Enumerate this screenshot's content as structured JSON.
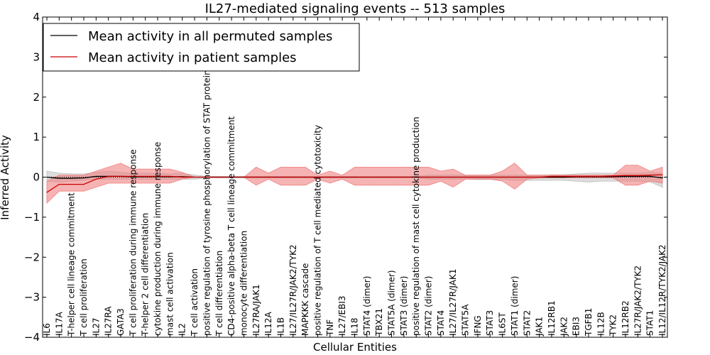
{
  "chart_data": {
    "type": "line",
    "title": "IL27-mediated signaling events -- 513 samples",
    "xlabel": "Cellular Entities",
    "ylabel": "Inferred Activity",
    "ylim": [
      -4,
      4
    ],
    "yticks": [
      -4,
      -3,
      -2,
      -1,
      0,
      1,
      2,
      3,
      4
    ],
    "ytick_labels": [
      "−4",
      "−3",
      "−2",
      "−1",
      "0",
      "1",
      "2",
      "3",
      "4"
    ],
    "legend_position": "top-left",
    "categories": [
      "IL6",
      "IL17A",
      "T-helper cell lineage commitment",
      "T cell proliferation",
      "IL27",
      "IL27RA",
      "GATA3",
      "T cell proliferation during immune response",
      "T-helper 2 cell differentiation",
      "cytokine production during immune response",
      "mast cell activation",
      "IL2",
      "T cell activation",
      "positive regulation of tyrosine phosphorylation of STAT protein",
      "T cell differentiation",
      "CD4-positive alpha-beta T cell lineage commitment",
      "monocyte differentiation",
      "IL27RA/JAK1",
      "IL12A",
      "IL1B",
      "IL27/IL27R/JAK2/TYK2",
      "MAPKKK cascade",
      "positive regulation of T cell mediated cytotoxicity",
      "TNF",
      "IL27/EBI3",
      "IL18",
      "STAT4 (dimer)",
      "TBX21",
      "STAT5A (dimer)",
      "STAT3 (dimer)",
      "positive regulation of mast cell cytokine production",
      "STAT2 (dimer)",
      "STAT4",
      "IL27/IL27R/JAK1",
      "STAT5A",
      "IFNG",
      "STAT3",
      "IL6ST",
      "STAT1 (dimer)",
      "STAT2",
      "JAK1",
      "IL12RB1",
      "JAK2",
      "EBI3",
      "TGFB1",
      "IL12B",
      "TYK2",
      "IL12RB2",
      "IL27R/JAK2/TYK2",
      "STAT1",
      "IL12/IL12R/TYK2/JAK2"
    ],
    "series": [
      {
        "name": "Mean activity in all permuted samples",
        "color": "#000000",
        "values": [
          0.0,
          -0.03,
          -0.03,
          -0.02,
          0.02,
          0.02,
          0.02,
          0.01,
          0.01,
          0.01,
          0.01,
          0.01,
          0.0,
          0.0,
          0.0,
          0.0,
          0.0,
          0.0,
          0.0,
          0.0,
          0.0,
          0.0,
          0.0,
          0.0,
          0.0,
          0.0,
          0.0,
          0.0,
          0.0,
          0.0,
          0.0,
          0.0,
          0.0,
          0.0,
          0.0,
          0.0,
          0.0,
          0.0,
          0.0,
          0.0,
          0.0,
          0.0,
          0.0,
          0.01,
          0.01,
          0.01,
          0.01,
          0.02,
          0.02,
          0.02,
          -0.02
        ],
        "band_upper": [
          0.15,
          0.1,
          0.08,
          0.08,
          0.12,
          0.15,
          0.12,
          0.1,
          0.1,
          0.1,
          0.08,
          0.1,
          0.05,
          0.02,
          0.02,
          0.02,
          0.02,
          0.02,
          0.02,
          0.02,
          0.02,
          0.02,
          0.02,
          0.02,
          0.02,
          0.02,
          0.02,
          0.02,
          0.02,
          0.02,
          0.02,
          0.05,
          0.05,
          0.05,
          0.05,
          0.05,
          0.05,
          0.05,
          0.05,
          0.05,
          0.05,
          0.06,
          0.06,
          0.08,
          0.1,
          0.1,
          0.1,
          0.1,
          0.1,
          0.12,
          0.1
        ],
        "band_lower": [
          -0.1,
          -0.12,
          -0.1,
          -0.08,
          -0.05,
          -0.05,
          -0.05,
          -0.05,
          -0.05,
          -0.05,
          -0.05,
          -0.05,
          -0.05,
          -0.02,
          -0.02,
          -0.02,
          -0.02,
          -0.02,
          -0.02,
          -0.02,
          -0.02,
          -0.02,
          -0.02,
          -0.02,
          -0.02,
          -0.02,
          -0.02,
          -0.02,
          -0.02,
          -0.02,
          -0.02,
          -0.05,
          -0.05,
          -0.05,
          -0.05,
          -0.06,
          -0.06,
          -0.06,
          -0.08,
          -0.08,
          -0.08,
          -0.08,
          -0.08,
          -0.1,
          -0.12,
          -0.1,
          -0.1,
          -0.1,
          -0.1,
          -0.12,
          -0.25
        ]
      },
      {
        "name": "Mean activity in patient samples",
        "color": "#cc0000",
        "band_color": "#f08080",
        "values": [
          -0.38,
          -0.18,
          -0.18,
          -0.18,
          -0.05,
          0.02,
          0.02,
          0.02,
          0.02,
          0.02,
          0.02,
          0.0,
          0.0,
          0.0,
          0.0,
          0.0,
          0.0,
          0.0,
          0.0,
          0.0,
          0.0,
          0.0,
          0.0,
          0.0,
          0.0,
          0.0,
          0.0,
          0.0,
          0.0,
          0.0,
          0.0,
          0.0,
          0.0,
          0.0,
          0.0,
          0.0,
          0.0,
          0.0,
          0.0,
          0.0,
          0.0,
          0.02,
          0.02,
          0.02,
          0.02,
          0.02,
          0.03,
          0.04,
          0.04,
          0.05,
          0.06
        ],
        "band_upper": [
          -0.1,
          0.05,
          0.05,
          0.05,
          0.15,
          0.25,
          0.35,
          0.2,
          0.2,
          0.2,
          0.2,
          0.12,
          0.0,
          0.0,
          0.0,
          0.0,
          0.0,
          0.25,
          0.1,
          0.25,
          0.25,
          0.25,
          0.05,
          0.15,
          0.05,
          0.25,
          0.25,
          0.25,
          0.25,
          0.25,
          0.25,
          0.25,
          0.15,
          0.2,
          0.05,
          0.05,
          0.05,
          0.15,
          0.35,
          0.05,
          0.05,
          0.05,
          0.05,
          0.05,
          0.05,
          0.05,
          0.05,
          0.3,
          0.3,
          0.15,
          0.25
        ],
        "band_lower": [
          -0.65,
          -0.35,
          -0.35,
          -0.35,
          -0.25,
          -0.15,
          -0.15,
          -0.15,
          -0.15,
          -0.15,
          -0.15,
          -0.05,
          0.0,
          0.0,
          0.0,
          0.0,
          0.0,
          -0.2,
          -0.05,
          -0.2,
          -0.2,
          -0.2,
          -0.05,
          -0.15,
          -0.05,
          -0.2,
          -0.2,
          -0.2,
          -0.2,
          -0.2,
          -0.2,
          -0.2,
          -0.1,
          -0.25,
          -0.05,
          -0.05,
          -0.05,
          -0.1,
          -0.3,
          -0.05,
          -0.02,
          -0.02,
          -0.02,
          -0.02,
          -0.02,
          -0.02,
          -0.02,
          -0.2,
          -0.2,
          -0.1,
          -0.15
        ]
      }
    ]
  }
}
